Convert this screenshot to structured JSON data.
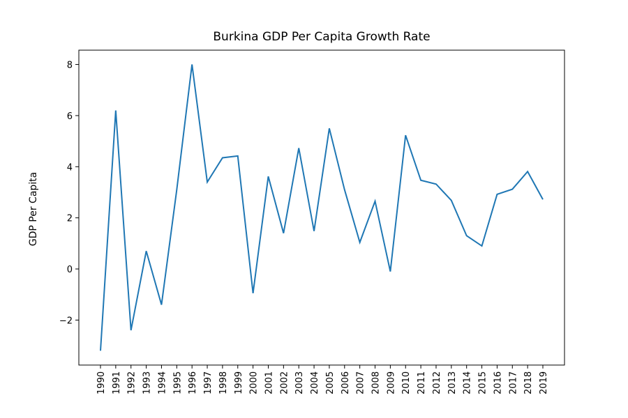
{
  "chart_data": {
    "type": "line",
    "title": "Burkina GDP Per Capita Growth Rate",
    "xlabel": "",
    "ylabel": "GDP Per Capita",
    "x": [
      "1990",
      "1991",
      "1992",
      "1993",
      "1994",
      "1995",
      "1996",
      "1997",
      "1998",
      "1999",
      "2000",
      "2001",
      "2002",
      "2003",
      "2004",
      "2005",
      "2006",
      "2007",
      "2008",
      "2009",
      "2010",
      "2011",
      "2012",
      "2013",
      "2014",
      "2015",
      "2016",
      "2017",
      "2018",
      "2019"
    ],
    "series": [
      {
        "values": [
          -3.2,
          6.2,
          -2.4,
          0.7,
          -1.4,
          3.1,
          8.0,
          3.4,
          4.35,
          4.42,
          -0.95,
          3.62,
          1.4,
          4.73,
          1.48,
          5.5,
          3.1,
          1.04,
          2.65,
          -0.1,
          5.23,
          3.47,
          3.32,
          2.68,
          1.3,
          0.9,
          2.92,
          3.12,
          3.81,
          2.72
        ],
        "color": "#1f77b4"
      }
    ],
    "yticks": [
      -2,
      0,
      2,
      4,
      6,
      8
    ],
    "ylim": [
      -3.76,
      8.56
    ],
    "grid": false,
    "legend": "none"
  }
}
